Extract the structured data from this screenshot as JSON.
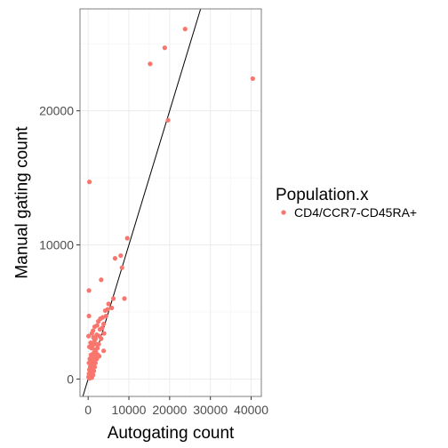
{
  "chart_data": {
    "type": "scatter",
    "title": "",
    "xlabel": "Autogating count",
    "ylabel": "Manual gating count",
    "xlim": [
      -2000,
      42500
    ],
    "ylim": [
      -1300,
      27600
    ],
    "x_ticks": [
      0,
      10000,
      20000,
      30000,
      40000
    ],
    "x_tick_labels": [
      "0",
      "10000",
      "20000",
      "30000",
      "40000"
    ],
    "y_ticks": [
      0,
      10000,
      20000
    ],
    "y_tick_labels": [
      "0",
      "10000",
      "20000"
    ],
    "grid": true,
    "legend_title": "Population.x",
    "legend_position": "right",
    "reference_line": {
      "slope": 1.0,
      "intercept": 0
    },
    "series": [
      {
        "name": "CD4/CCR7-CD45RA+",
        "color": "#F8766D",
        "points": [
          [
            40400,
            22400
          ],
          [
            23800,
            26100
          ],
          [
            18800,
            24700
          ],
          [
            15200,
            23500
          ],
          [
            19600,
            19300
          ],
          [
            300,
            14700
          ],
          [
            9600,
            10500
          ],
          [
            8000,
            9200
          ],
          [
            6600,
            9000
          ],
          [
            8300,
            8300
          ],
          [
            3200,
            7400
          ],
          [
            200,
            6600
          ],
          [
            8900,
            6000
          ],
          [
            6200,
            6000
          ],
          [
            5800,
            5300
          ],
          [
            5000,
            5600
          ],
          [
            4800,
            5200
          ],
          [
            4200,
            5100
          ],
          [
            3600,
            4600
          ],
          [
            3000,
            4500
          ],
          [
            2500,
            4300
          ],
          [
            200,
            4700
          ],
          [
            3800,
            4100
          ],
          [
            2200,
            4000
          ],
          [
            1600,
            3900
          ],
          [
            2900,
            3700
          ],
          [
            1200,
            3600
          ],
          [
            2100,
            3300
          ],
          [
            3200,
            3000
          ],
          [
            900,
            3400
          ],
          [
            100,
            3200
          ],
          [
            1800,
            3000
          ],
          [
            1500,
            2800
          ],
          [
            2600,
            2600
          ],
          [
            1100,
            2500
          ],
          [
            600,
            2700
          ],
          [
            2300,
            2300
          ],
          [
            1700,
            2200
          ],
          [
            800,
            2300
          ],
          [
            300,
            2400
          ],
          [
            1900,
            2000
          ],
          [
            3800,
            2100
          ],
          [
            1300,
            1900
          ],
          [
            700,
            1800
          ],
          [
            2700,
            1700
          ],
          [
            1000,
            1600
          ],
          [
            400,
            1500
          ],
          [
            2100,
            1500
          ],
          [
            1400,
            1400
          ],
          [
            600,
            1300
          ],
          [
            1800,
            1200
          ],
          [
            900,
            1100
          ],
          [
            200,
            1200
          ],
          [
            1200,
            1000
          ],
          [
            500,
            900
          ],
          [
            1600,
            900
          ],
          [
            800,
            800
          ],
          [
            300,
            700
          ],
          [
            1100,
            700
          ],
          [
            1400,
            600
          ],
          [
            600,
            500
          ],
          [
            200,
            400
          ],
          [
            900,
            400
          ],
          [
            400,
            300
          ],
          [
            1200,
            300
          ],
          [
            700,
            200
          ],
          [
            100,
            150
          ],
          [
            500,
            100
          ],
          [
            300,
            50
          ],
          [
            900,
            100
          ],
          [
            1500,
            2000
          ],
          [
            2400,
            1800
          ],
          [
            2000,
            2600
          ],
          [
            2800,
            3200
          ],
          [
            3400,
            3800
          ],
          [
            4400,
            4700
          ],
          [
            3900,
            3400
          ],
          [
            1300,
            3100
          ],
          [
            800,
            1500
          ],
          [
            1700,
            1700
          ]
        ]
      }
    ]
  }
}
